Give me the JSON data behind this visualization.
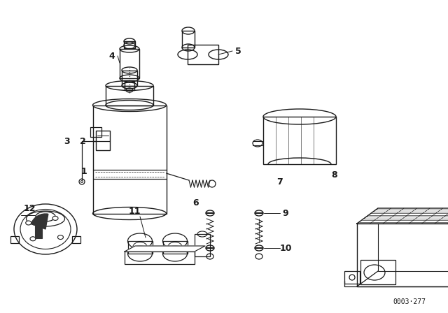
{
  "bg_color": "#ffffff",
  "line_color": "#1a1a1a",
  "fig_width": 6.4,
  "fig_height": 4.48,
  "dpi": 100,
  "catalog_number": "0003·277"
}
